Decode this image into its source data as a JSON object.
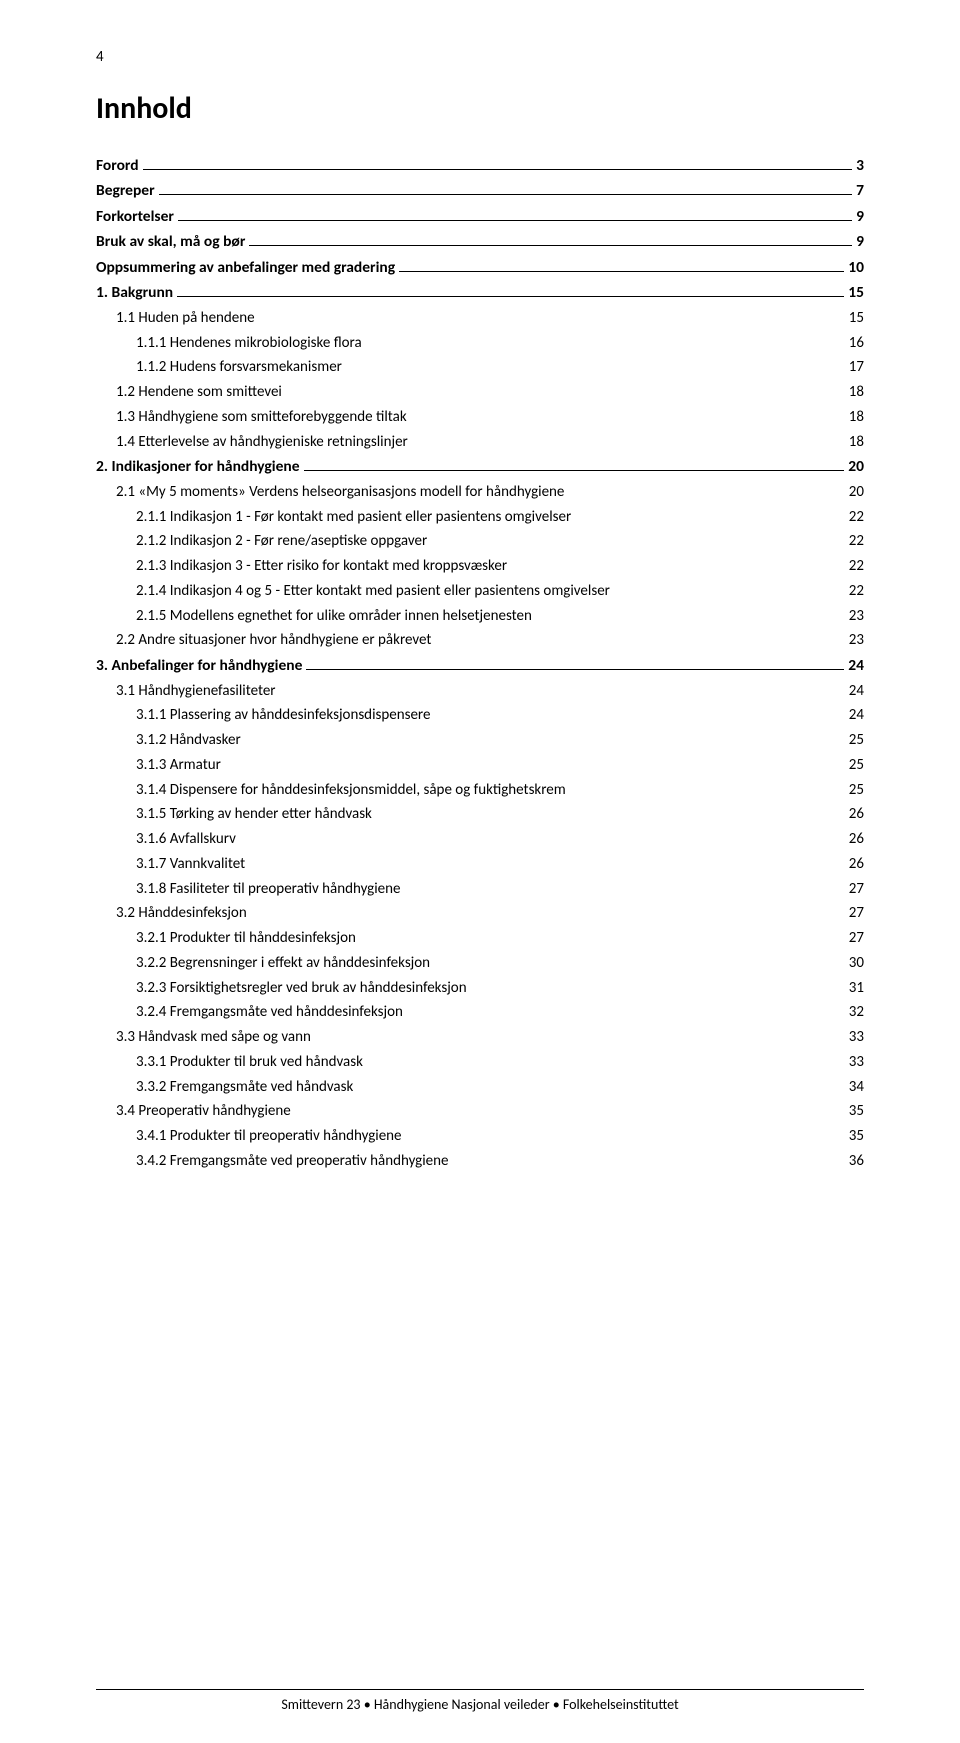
{
  "page_number_top": "4",
  "title": "Innhold",
  "footer": "Smittevern 23 • Håndhygiene   Nasjonal veileder • Folkehelseinstituttet",
  "toc": [
    {
      "label": "Forord",
      "page": "3",
      "level": 0,
      "leader": true
    },
    {
      "label": "Begreper",
      "page": "7",
      "level": 0,
      "leader": true
    },
    {
      "label": "Forkortelser",
      "page": "9",
      "level": 0,
      "leader": true
    },
    {
      "label": "Bruk av skal, må og bør",
      "page": "9",
      "level": 0,
      "leader": true
    },
    {
      "label": "Oppsummering av anbefalinger med gradering",
      "page": "10",
      "level": 0,
      "leader": true
    },
    {
      "label": "1. Bakgrunn",
      "page": "15",
      "level": 0,
      "leader": true
    },
    {
      "label": "1.1 Huden på hendene",
      "page": "15",
      "level": 1,
      "leader": false
    },
    {
      "label": "1.1.1 Hendenes mikrobiologiske flora",
      "page": "16",
      "level": 2,
      "leader": false
    },
    {
      "label": "1.1.2 Hudens forsvarsmekanismer",
      "page": "17",
      "level": 2,
      "leader": false
    },
    {
      "label": "1.2 Hendene som smittevei",
      "page": "18",
      "level": 1,
      "leader": false
    },
    {
      "label": "1.3 Håndhygiene som smitteforebyggende tiltak",
      "page": "18",
      "level": 1,
      "leader": false
    },
    {
      "label": "1.4 Etterlevelse av håndhygieniske retningslinjer",
      "page": "18",
      "level": 1,
      "leader": false
    },
    {
      "label": "2. Indikasjoner for håndhygiene",
      "page": "20",
      "level": 0,
      "leader": true
    },
    {
      "label": "2.1 «My 5 moments» Verdens helseorganisasjons modell for håndhygiene",
      "page": "20",
      "level": 1,
      "leader": false
    },
    {
      "label": "2.1.1 Indikasjon 1 - Før kontakt med pasient eller pasientens omgivelser",
      "page": "22",
      "level": 2,
      "leader": false
    },
    {
      "label": "2.1.2 Indikasjon 2 - Før rene/aseptiske oppgaver",
      "page": "22",
      "level": 2,
      "leader": false
    },
    {
      "label": "2.1.3 Indikasjon 3 - Etter risiko for kontakt med kroppsvæsker",
      "page": "22",
      "level": 2,
      "leader": false
    },
    {
      "label": "2.1.4 Indikasjon 4 og 5 - Etter kontakt med pasient eller pasientens omgivelser",
      "page": "22",
      "level": 2,
      "leader": false
    },
    {
      "label": "2.1.5 Modellens egnethet for ulike områder innen helsetjenesten",
      "page": "23",
      "level": 2,
      "leader": false
    },
    {
      "label": "2.2 Andre situasjoner hvor håndhygiene er påkrevet",
      "page": "23",
      "level": 1,
      "leader": false
    },
    {
      "label": "3. Anbefalinger for håndhygiene",
      "page": "24",
      "level": 0,
      "leader": true
    },
    {
      "label": "3.1 Håndhygienefasiliteter",
      "page": "24",
      "level": 1,
      "leader": false
    },
    {
      "label": "3.1.1 Plassering av hånddesinfeksjonsdispensere",
      "page": "24",
      "level": 2,
      "leader": false
    },
    {
      "label": "3.1.2 Håndvasker",
      "page": "25",
      "level": 2,
      "leader": false
    },
    {
      "label": "3.1.3 Armatur",
      "page": "25",
      "level": 2,
      "leader": false
    },
    {
      "label": "3.1.4 Dispensere for hånddesinfeksjonsmiddel, såpe og fuktighetskrem",
      "page": "25",
      "level": 2,
      "leader": false
    },
    {
      "label": "3.1.5 Tørking av hender etter håndvask",
      "page": "26",
      "level": 2,
      "leader": false
    },
    {
      "label": "3.1.6 Avfallskurv",
      "page": "26",
      "level": 2,
      "leader": false
    },
    {
      "label": "3.1.7 Vannkvalitet",
      "page": "26",
      "level": 2,
      "leader": false
    },
    {
      "label": "3.1.8 Fasiliteter til preoperativ håndhygiene",
      "page": "27",
      "level": 2,
      "leader": false
    },
    {
      "label": "3.2 Hånddesinfeksjon",
      "page": "27",
      "level": 1,
      "leader": false
    },
    {
      "label": "3.2.1 Produkter til hånddesinfeksjon",
      "page": "27",
      "level": 2,
      "leader": false
    },
    {
      "label": "3.2.2 Begrensninger i effekt av hånddesinfeksjon",
      "page": "30",
      "level": 2,
      "leader": false
    },
    {
      "label": "3.2.3 Forsiktighetsregler ved bruk av hånddesinfeksjon",
      "page": "31",
      "level": 2,
      "leader": false
    },
    {
      "label": "3.2.4 Fremgangsmåte ved hånddesinfeksjon",
      "page": "32",
      "level": 2,
      "leader": false
    },
    {
      "label": "3.3 Håndvask med såpe og vann",
      "page": "33",
      "level": 1,
      "leader": false
    },
    {
      "label": "3.3.1 Produkter til bruk ved håndvask",
      "page": "33",
      "level": 2,
      "leader": false
    },
    {
      "label": "3.3.2 Fremgangsmåte ved håndvask",
      "page": "34",
      "level": 2,
      "leader": false
    },
    {
      "label": "3.4 Preoperativ håndhygiene",
      "page": "35",
      "level": 1,
      "leader": false
    },
    {
      "label": "3.4.1 Produkter til preoperativ håndhygiene",
      "page": "35",
      "level": 2,
      "leader": false
    },
    {
      "label": "3.4.2 Fremgangsmåte ved preoperativ håndhygiene",
      "page": "36",
      "level": 2,
      "leader": false
    }
  ]
}
